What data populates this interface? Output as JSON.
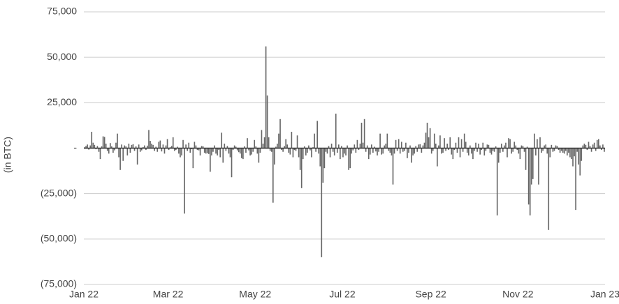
{
  "chart_data": {
    "type": "bar",
    "y_label": "(in BTC)",
    "color": "#666666",
    "grid": true,
    "xlim": [
      0,
      365
    ],
    "xticks": [
      {
        "value": 0,
        "label": "Jan 22"
      },
      {
        "value": 59,
        "label": "Mar 22"
      },
      {
        "value": 120,
        "label": "May 22"
      },
      {
        "value": 181,
        "label": "Jul 22"
      },
      {
        "value": 243,
        "label": "Sep 22"
      },
      {
        "value": 304,
        "label": "Nov 22"
      },
      {
        "value": 365,
        "label": "Jan 23"
      }
    ],
    "ylim": [
      -75000,
      75000
    ],
    "yticks": [
      {
        "value": 75000,
        "label": "75,000"
      },
      {
        "value": 50000,
        "label": "50,000"
      },
      {
        "value": 25000,
        "label": "25,000"
      },
      {
        "value": 0,
        "label": "-"
      },
      {
        "value": -25000,
        "label": "(25,000)"
      },
      {
        "value": -50000,
        "label": "(50,000)"
      },
      {
        "value": -75000,
        "label": "(75,000)"
      }
    ],
    "values": [
      500,
      1200,
      2000,
      -800,
      1500,
      9000,
      3000,
      1800,
      -600,
      1200,
      -2000,
      -6000,
      1000,
      6500,
      6200,
      2500,
      -1500,
      -3000,
      2800,
      1000,
      -2500,
      -1200,
      3000,
      8000,
      -5000,
      -12000,
      2000,
      -7000,
      1500,
      1000,
      -4000,
      2500,
      -2500,
      1800,
      2200,
      -1500,
      1000,
      -9000,
      2000,
      -2000,
      -1200,
      600,
      1500,
      -1000,
      1400,
      10000,
      4000,
      2500,
      1800,
      -1500,
      800,
      -2000,
      3500,
      4200,
      -1800,
      2000,
      -3000,
      1500,
      5000,
      -1000,
      500,
      1200,
      6000,
      -1500,
      -1000,
      800,
      -3000,
      -5000,
      -4000,
      4500,
      -36000,
      2000,
      -1500,
      3000,
      -2500,
      -600,
      -11000,
      3500,
      1500,
      -1000,
      -1200,
      -4000,
      1200,
      1000,
      -2500,
      -3000,
      -2800,
      -3200,
      -13000,
      -4000,
      -2000,
      1500,
      -3000,
      -4000,
      -1000,
      -5000,
      8500,
      -8000,
      2500,
      -1500,
      1200,
      -3000,
      -5000,
      -16000,
      -1000,
      1500,
      800,
      -1200,
      -2200,
      -3000,
      -5500,
      -6000,
      1000,
      -2500,
      5500,
      -1200,
      -4000,
      -3500,
      -2000,
      4500,
      1000,
      -3000,
      -8000,
      -2500,
      10000,
      2500,
      6000,
      56000,
      29000,
      6000,
      -1500,
      -2000,
      -30000,
      -9000,
      800,
      2500,
      8000,
      16000,
      -1000,
      -2000,
      1200,
      5000,
      2000,
      -2500,
      -3500,
      9000,
      -5000,
      -1000,
      -1500,
      7000,
      -5000,
      -12000,
      -22000,
      -6000,
      1000,
      -4000,
      -2500,
      1500,
      -1200,
      -5000,
      500,
      8000,
      -2000,
      15000,
      -3000,
      -10000,
      -60000,
      -19000,
      -11000,
      -2000,
      -3000,
      1200,
      -5000,
      2500,
      -2000,
      -4000,
      19000,
      -2500,
      2000,
      -6000,
      1200,
      -5000,
      -3000,
      -4000,
      1500,
      -12000,
      -11000,
      -3000,
      -1200,
      2000,
      -2500,
      4500,
      -1000,
      2500,
      14000,
      3000,
      16000,
      -2000,
      1500,
      -6000,
      -3500,
      2000,
      -2500,
      800,
      -1800,
      -4000,
      -2000,
      8000,
      -3500,
      -3000,
      1500,
      2500,
      8000,
      -1500,
      -2500,
      -4000,
      -20000,
      -3000,
      4500,
      -1500,
      5000,
      -3000,
      3500,
      -2000,
      -1500,
      3000,
      -5500,
      -2500,
      1500,
      -8000,
      -4000,
      -3000,
      1200,
      -2000,
      2000,
      2200,
      -2500,
      1500,
      3000,
      8500,
      14000,
      6000,
      11000,
      -3000,
      -1500,
      8000,
      2500,
      -10000,
      1500,
      7000,
      -3000,
      -2500,
      5500,
      -1500,
      2500,
      -1000,
      6000,
      -3500,
      -6000,
      -1000,
      3000,
      -2500,
      6000,
      -5000,
      5000,
      -2000,
      8000,
      3500,
      -2500,
      -4000,
      1500,
      -3000,
      -6000,
      -1500,
      3000,
      -2000,
      2500,
      -3500,
      -1000,
      3000,
      -4000,
      -1500,
      2000,
      1800,
      -2500,
      -3500,
      -1500,
      -2000,
      1000,
      -37000,
      -8000,
      -2500,
      2500,
      -2000,
      1500,
      3000,
      -5000,
      5500,
      5000,
      -3000,
      -2000,
      3500,
      1500,
      -1000,
      -3000,
      -6000,
      1500,
      1200,
      -2000,
      -12000,
      800,
      -31000,
      -37000,
      -20000,
      -17000,
      8000,
      -4000,
      5000,
      -20000,
      6000,
      -2500,
      -1500,
      1500,
      2000,
      -3000,
      -45000,
      -5000,
      1800,
      -2000,
      -1500,
      1500,
      1200,
      -1000,
      -2500,
      -1500,
      -2500,
      -3000,
      -1500,
      -4000,
      -2500,
      -5000,
      -6000,
      -10000,
      -4500,
      -34000,
      -2000,
      -9000,
      -15000,
      -7000,
      1500,
      2500,
      1800,
      -1000,
      3500,
      1200,
      -2000,
      2000,
      3000,
      -1500,
      4500,
      5000,
      1500,
      -1000,
      2000,
      -2000
    ]
  }
}
